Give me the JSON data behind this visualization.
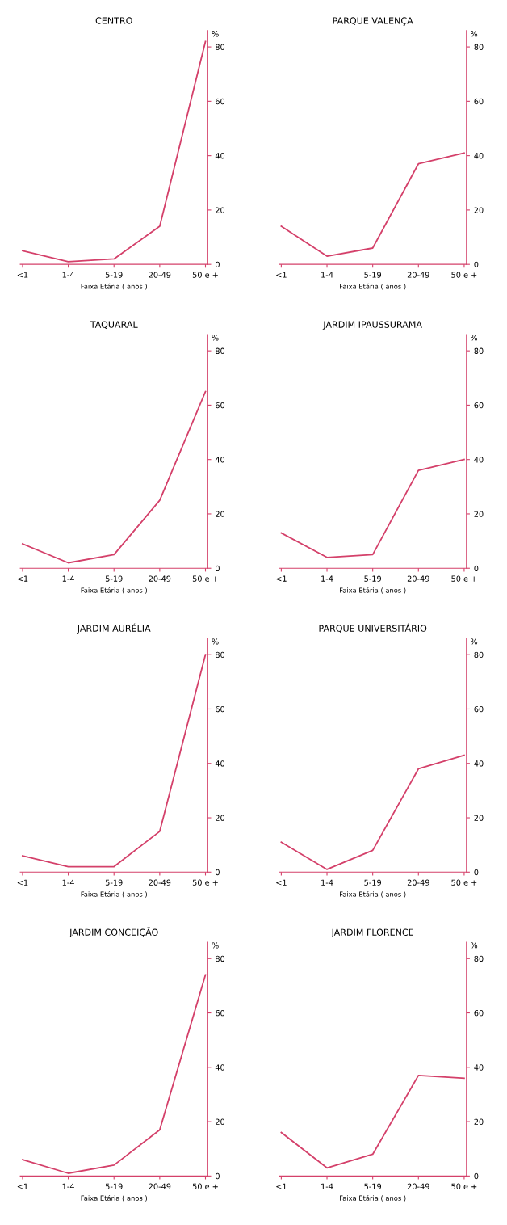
{
  "chart_data": [
    {
      "type": "line",
      "title": "CENTRO",
      "categories": [
        "<1",
        "1-4",
        "5-19",
        "20-49",
        "50 e +"
      ],
      "xlabel": "Faixa Etária ( anos )",
      "ylabel": "%",
      "ylim": [
        0,
        86
      ],
      "yticks": [
        0,
        20,
        40,
        60,
        80
      ],
      "series": [
        {
          "color": "#d4406a",
          "values": [
            5,
            1,
            2,
            14,
            82
          ]
        }
      ]
    },
    {
      "type": "line",
      "title": "PARQUE VALENÇA",
      "categories": [
        "<1",
        "1-4",
        "5-19",
        "20-49",
        "50 e +"
      ],
      "xlabel": "Faixa Etária ( anos )",
      "ylabel": "%",
      "ylim": [
        0,
        86
      ],
      "yticks": [
        0,
        20,
        40,
        60,
        80
      ],
      "series": [
        {
          "color": "#d4406a",
          "values": [
            14,
            3,
            6,
            37,
            41
          ]
        }
      ]
    },
    {
      "type": "line",
      "title": "TAQUARAL",
      "categories": [
        "<1",
        "1-4",
        "5-19",
        "20-49",
        "50 e +"
      ],
      "xlabel": "Faixa Etária ( anos )",
      "ylabel": "%",
      "ylim": [
        0,
        86
      ],
      "yticks": [
        0,
        20,
        40,
        60,
        80
      ],
      "series": [
        {
          "color": "#d4406a",
          "values": [
            9,
            2,
            5,
            25,
            65
          ]
        }
      ]
    },
    {
      "type": "line",
      "title": "JARDIM IPAUSSURAMA",
      "categories": [
        "<1",
        "1-4",
        "5-19",
        "20-49",
        "50 e +"
      ],
      "xlabel": "Faixa Etária ( anos )",
      "ylabel": "%",
      "ylim": [
        0,
        86
      ],
      "yticks": [
        0,
        20,
        40,
        60,
        80
      ],
      "series": [
        {
          "color": "#d4406a",
          "values": [
            13,
            4,
            5,
            36,
            40
          ]
        }
      ]
    },
    {
      "type": "line",
      "title": "JARDIM AURÉLIA",
      "categories": [
        "<1",
        "1-4",
        "5-19",
        "20-49",
        "50 e +"
      ],
      "xlabel": "Faixa Etária ( anos )",
      "ylabel": "%",
      "ylim": [
        0,
        86
      ],
      "yticks": [
        0,
        20,
        40,
        60,
        80
      ],
      "series": [
        {
          "color": "#d4406a",
          "values": [
            6,
            2,
            2,
            15,
            80
          ]
        }
      ]
    },
    {
      "type": "line",
      "title": "PARQUE UNIVERSITÁRIO",
      "categories": [
        "<1",
        "1-4",
        "5-19",
        "20-49",
        "50 e +"
      ],
      "xlabel": "Faixa Etária ( anos )",
      "ylabel": "%",
      "ylim": [
        0,
        86
      ],
      "yticks": [
        0,
        20,
        40,
        60,
        80
      ],
      "series": [
        {
          "color": "#d4406a",
          "values": [
            11,
            1,
            8,
            38,
            43
          ]
        }
      ]
    },
    {
      "type": "line",
      "title": "JARDIM CONCEIÇÃO",
      "categories": [
        "<1",
        "1-4",
        "5-19",
        "20-49",
        "50 e +"
      ],
      "xlabel": "Faixa Etária ( anos )",
      "ylabel": "%",
      "ylim": [
        0,
        86
      ],
      "yticks": [
        0,
        20,
        40,
        60,
        80
      ],
      "series": [
        {
          "color": "#d4406a",
          "values": [
            6,
            1,
            4,
            17,
            74
          ]
        }
      ]
    },
    {
      "type": "line",
      "title": "JARDIM FLORENCE",
      "categories": [
        "<1",
        "1-4",
        "5-19",
        "20-49",
        "50 e +"
      ],
      "xlabel": "Faixa Etária ( anos )",
      "ylabel": "%",
      "ylim": [
        0,
        86
      ],
      "yticks": [
        0,
        20,
        40,
        60,
        80
      ],
      "series": [
        {
          "color": "#d4406a",
          "values": [
            16,
            3,
            8,
            37,
            36
          ]
        }
      ]
    }
  ]
}
